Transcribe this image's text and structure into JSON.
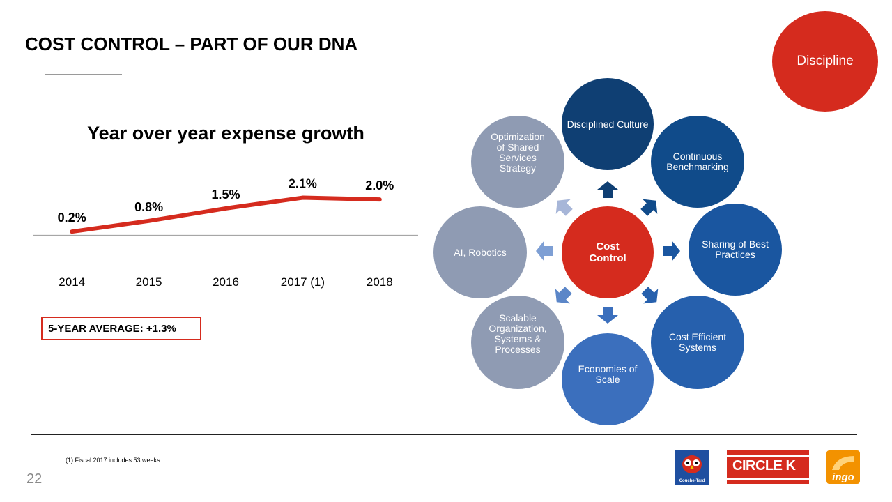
{
  "slide": {
    "title": "COST CONTROL – PART OF OUR DNA",
    "badge": "Discipline",
    "footnote": "(1) Fiscal 2017 includes 53 weeks.",
    "page_number": "22",
    "average_box": "5-YEAR AVERAGE: +1.3%"
  },
  "chart_data": {
    "type": "line",
    "title": "Year over year expense growth",
    "categories": [
      "2014",
      "2015",
      "2016",
      "2017 (1)",
      "2018"
    ],
    "series": [
      {
        "values": [
          0.2,
          0.8,
          1.5,
          2.1,
          2.0
        ],
        "color": "#d52b1e"
      }
    ],
    "data_labels": [
      "0.2%",
      "0.8%",
      "1.5%",
      "2.1%",
      "2.0%"
    ],
    "ylim": [
      -0.3,
      3.8
    ],
    "baseline": 0,
    "grid": false,
    "legend": "none"
  },
  "diagram": {
    "center": {
      "label": "Cost Control",
      "color": "#d52b1e"
    },
    "nodes": [
      {
        "label": "Disciplined Culture",
        "color": "#0f3f73"
      },
      {
        "label": "Continuous Benchmarking",
        "color": "#104b8a"
      },
      {
        "label": "Sharing of Best Practices",
        "color": "#1a56a0"
      },
      {
        "label": "Cost Efficient Systems",
        "color": "#2660ad"
      },
      {
        "label": "Economies of Scale",
        "color": "#3b6fbd"
      },
      {
        "label": "Scalable Organization, Systems & Processes",
        "color": "#8f9bb3"
      },
      {
        "label": "AI, Robotics",
        "color": "#8f9bb3"
      },
      {
        "label": "Optimization of Shared Services Strategy",
        "color": "#8f9bb3"
      }
    ]
  },
  "logos": {
    "couche_tard": {
      "text": "Couche-Tard",
      "color": "#1f4fa0"
    },
    "circle_k": {
      "text": "CIRCLE K",
      "color": "#d52b1e"
    },
    "ingo": {
      "text": "ingo",
      "color": "#f39200"
    }
  }
}
